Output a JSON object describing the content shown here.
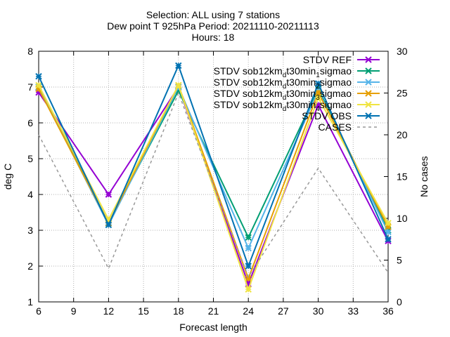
{
  "chart_data": {
    "type": "line",
    "title_lines": [
      "Selection: ALL using     7 stations",
      "Dew point T 925hPa   Period: 20211110-20211113",
      "Hours: 18"
    ],
    "xlabel": "Forecast length",
    "ylabel": "deg C",
    "y2label": "No cases",
    "xlim": [
      6,
      36
    ],
    "ylim": [
      1,
      8
    ],
    "y2lim": [
      0,
      30
    ],
    "xticks": [
      "6",
      "9",
      "12",
      "15",
      "18",
      "21",
      "24",
      "27",
      "30",
      "33",
      "36"
    ],
    "yticks": [
      "1",
      "2",
      "3",
      "4",
      "5",
      "6",
      "7",
      "8"
    ],
    "y2ticks": [
      "0",
      "5",
      "10",
      "15",
      "20",
      "25",
      "30"
    ],
    "grid": true,
    "legend_position": "top-right",
    "x": [
      6,
      12,
      18,
      24,
      30,
      36
    ],
    "series": [
      {
        "name": "STDV REF",
        "label_main": "STDV REF",
        "label_sub": "",
        "label_tail": "",
        "color": "#9400d3",
        "dash": false,
        "marker": "x",
        "axis": "y1",
        "values": [
          6.85,
          4.0,
          7.0,
          1.5,
          6.5,
          2.7
        ]
      },
      {
        "name": "STDV sob12km_d t30min_1 sigmao",
        "label_main": "STDV sob12km",
        "label_sub": "d",
        "label_tail": "t30min",
        "label_sub2": "1",
        "label_end": "sigmao",
        "color": "#009e73",
        "dash": false,
        "marker": "x",
        "axis": "y1",
        "values": [
          7.0,
          3.2,
          6.9,
          2.8,
          6.95,
          3.0
        ]
      },
      {
        "name": "STDV sob12km_d t30min_2 sigmao",
        "label_main": "STDV sob12km",
        "label_sub": "d",
        "label_tail": "t30min",
        "label_sub2": "2",
        "label_end": "sigmao",
        "color": "#56b4e9",
        "dash": false,
        "marker": "x",
        "axis": "y1",
        "values": [
          7.0,
          3.15,
          7.0,
          2.5,
          6.9,
          2.95
        ]
      },
      {
        "name": "STDV sob12km_d t30min_3 sigmao",
        "label_main": "STDV sob12km",
        "label_sub": "d",
        "label_tail": "t30min",
        "label_sub2": "3",
        "label_end": "sigmao",
        "color": "#e69f00",
        "dash": false,
        "marker": "x",
        "axis": "y1",
        "values": [
          6.95,
          3.2,
          7.05,
          1.65,
          6.85,
          3.1
        ]
      },
      {
        "name": "STDV sob12km_d t30min_4 sigmao",
        "label_main": "STDV sob12km",
        "label_sub": "d",
        "label_tail": "t30min",
        "label_sub2": "4",
        "label_end": "sigmao",
        "color": "#f0e442",
        "dash": false,
        "marker": "x",
        "axis": "y1",
        "values": [
          7.05,
          3.3,
          7.05,
          1.35,
          6.7,
          3.2
        ]
      },
      {
        "name": "STDV OBS",
        "label_main": "STDV OBS",
        "label_sub": "",
        "label_tail": "",
        "color": "#0072b2",
        "dash": false,
        "marker": "x",
        "axis": "y1",
        "values": [
          7.3,
          3.15,
          7.6,
          2.0,
          7.1,
          2.75
        ]
      },
      {
        "name": "CASES",
        "label_main": "CASES",
        "label_sub": "",
        "label_tail": "",
        "color": "#999999",
        "dash": true,
        "marker": "none",
        "axis": "y2",
        "values": [
          20,
          4,
          25,
          3,
          16,
          3.5
        ]
      }
    ]
  }
}
